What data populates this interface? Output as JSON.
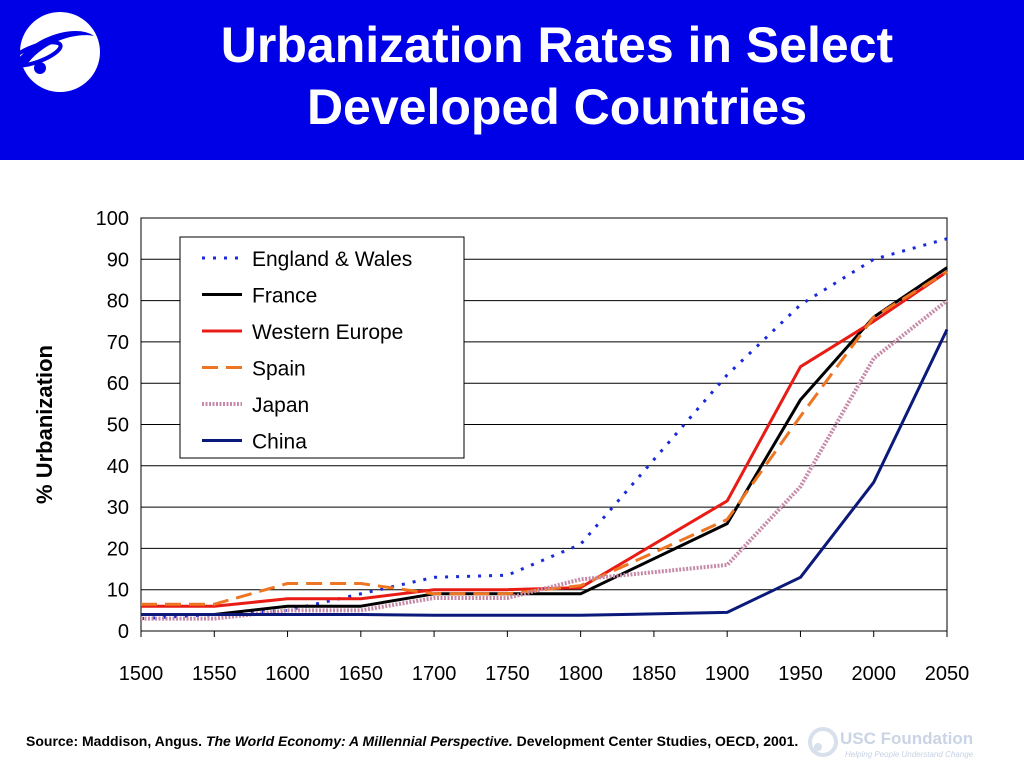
{
  "title": "Urbanization Rates in Select Developed Countries",
  "source": {
    "prefix": "Source: Maddison, Angus. ",
    "book": "The World Economy: A Millennial Perspective.",
    "suffix": " Development Center Studies, OECD, 2001."
  },
  "watermark": {
    "text": "USC Foundation",
    "sub": "Helping People Understand Change"
  },
  "colors": {
    "header_bg": "#0000e6",
    "england_wales": "#1a2adb",
    "france": "#000000",
    "western_europe": "#e81c14",
    "spain": "#ee7622",
    "japan": "#c68aa8",
    "china": "#0b1a7a"
  },
  "chart_data": {
    "type": "line",
    "ylabel": "% Urbanization",
    "xlabel": "",
    "ylim": [
      0,
      100
    ],
    "xlim": [
      1500,
      2050
    ],
    "yticks": [
      0,
      10,
      20,
      30,
      40,
      50,
      60,
      70,
      80,
      90,
      100
    ],
    "xticks": [
      1500,
      1550,
      1600,
      1650,
      1700,
      1750,
      1800,
      1850,
      1900,
      1950,
      2000,
      2050
    ],
    "grid": "horizontal",
    "legend_position": "top-left",
    "series": [
      {
        "name": "England & Wales",
        "color": "#1a2adb",
        "dash": "dotted",
        "x": [
          1500,
          1600,
          1700,
          1750,
          1800,
          1900,
          1950,
          2000,
          2050
        ],
        "y": [
          3,
          5,
          13,
          13.5,
          21,
          62,
          79,
          90,
          95
        ]
      },
      {
        "name": "France",
        "color": "#000000",
        "dash": "solid",
        "x": [
          1500,
          1550,
          1600,
          1650,
          1700,
          1750,
          1800,
          1900,
          1950,
          2000,
          2050
        ],
        "y": [
          4,
          4,
          6,
          6,
          9,
          9,
          9,
          26,
          56,
          76,
          88
        ]
      },
      {
        "name": "Western Europe",
        "color": "#e81c14",
        "dash": "solid",
        "x": [
          1500,
          1550,
          1600,
          1650,
          1700,
          1750,
          1800,
          1900,
          1950,
          2000,
          2050
        ],
        "y": [
          6,
          6,
          7.8,
          7.8,
          10,
          10,
          10.5,
          31.5,
          64,
          75,
          87
        ]
      },
      {
        "name": "Spain",
        "color": "#ee7622",
        "dash": "dashed",
        "x": [
          1500,
          1550,
          1600,
          1650,
          1700,
          1750,
          1800,
          1900,
          1950,
          2000,
          2050
        ],
        "y": [
          6.5,
          6.5,
          11.5,
          11.5,
          9,
          9,
          11,
          27,
          52,
          76,
          87
        ]
      },
      {
        "name": "Japan",
        "color": "#c68aa8",
        "dash": "dense",
        "x": [
          1500,
          1550,
          1600,
          1650,
          1700,
          1750,
          1800,
          1900,
          1950,
          2000,
          2050
        ],
        "y": [
          3,
          3,
          5,
          5,
          8,
          8,
          12.5,
          16,
          35,
          66,
          80
        ]
      },
      {
        "name": "China",
        "color": "#0b1a7a",
        "dash": "solid",
        "x": [
          1500,
          1550,
          1600,
          1650,
          1700,
          1750,
          1800,
          1900,
          1950,
          2000,
          2050
        ],
        "y": [
          4,
          4,
          4,
          4,
          3.8,
          3.8,
          3.8,
          4.5,
          13,
          36,
          73
        ]
      }
    ]
  }
}
